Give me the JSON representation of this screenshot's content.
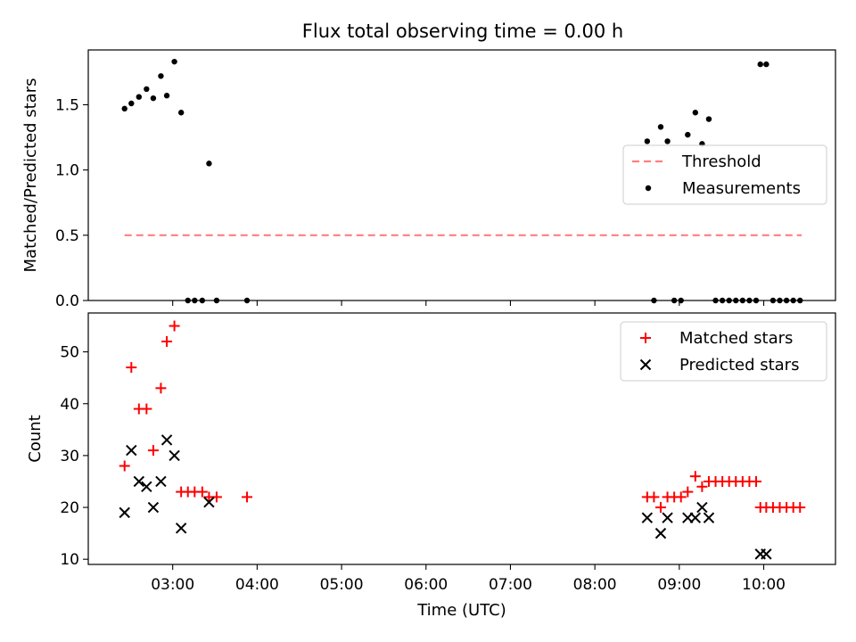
{
  "figure": {
    "title": "Flux total observing time = 0.00 h"
  },
  "chart_data": [
    {
      "type": "scatter",
      "title": "Flux total observing time = 0.00 h",
      "ylabel": "Matched/Predicted stars",
      "xlabel": "",
      "x_axis": "time_utc_hours",
      "xlim": [
        2.0,
        10.85
      ],
      "ylim": [
        0.0,
        1.92
      ],
      "yticks": [
        0.0,
        0.5,
        1.0,
        1.5
      ],
      "ytick_labels": [
        "0.0",
        "0.5",
        "1.0",
        "1.5"
      ],
      "xticks": [
        3,
        4,
        5,
        6,
        7,
        8,
        9,
        10
      ],
      "xtick_labels": [
        "",
        "",
        "",
        "",
        "",
        "",
        "",
        ""
      ],
      "legend": {
        "placement": "center-right",
        "entries": [
          "Threshold",
          "Measurements"
        ]
      },
      "series": [
        {
          "name": "Threshold",
          "kind": "dashed-line",
          "color": "#ff7f7f",
          "x": [
            2.43,
            10.45
          ],
          "y": [
            0.5,
            0.5
          ]
        },
        {
          "name": "Measurements",
          "kind": "dot",
          "color": "#000000",
          "x": [
            2.43,
            2.51,
            2.6,
            2.69,
            2.77,
            2.86,
            2.93,
            3.02,
            3.1,
            3.18,
            3.26,
            3.35,
            3.43,
            3.52,
            3.88,
            8.62,
            8.7,
            8.78,
            8.86,
            8.94,
            9.02,
            9.1,
            9.19,
            9.27,
            9.35,
            9.43,
            9.51,
            9.59,
            9.67,
            9.75,
            9.83,
            9.91,
            9.96,
            10.03,
            10.11,
            10.19,
            10.27,
            10.35,
            10.43
          ],
          "y": [
            1.47,
            1.51,
            1.56,
            1.62,
            1.55,
            1.72,
            1.57,
            1.83,
            1.44,
            0.0,
            0.0,
            0.0,
            1.05,
            0.0,
            0.0,
            1.22,
            0.0,
            1.33,
            1.22,
            0.0,
            0.0,
            1.27,
            1.44,
            1.2,
            1.39,
            0.0,
            0.0,
            0.0,
            0.0,
            0.0,
            0.0,
            0.0,
            1.81,
            1.81,
            0.0,
            0.0,
            0.0,
            0.0,
            0.0
          ]
        }
      ]
    },
    {
      "type": "scatter",
      "title": "",
      "ylabel": "Count",
      "xlabel": "Time (UTC)",
      "x_axis": "time_utc_hours",
      "xlim": [
        2.0,
        10.85
      ],
      "ylim": [
        9,
        57.5
      ],
      "yticks": [
        10,
        20,
        30,
        40,
        50
      ],
      "ytick_labels": [
        "10",
        "20",
        "30",
        "40",
        "50"
      ],
      "xticks": [
        3,
        4,
        5,
        6,
        7,
        8,
        9,
        10
      ],
      "xtick_labels": [
        "03:00",
        "04:00",
        "05:00",
        "06:00",
        "07:00",
        "08:00",
        "09:00",
        "10:00"
      ],
      "legend": {
        "placement": "top-right",
        "entries": [
          "Matched stars",
          "Predicted stars"
        ]
      },
      "series": [
        {
          "name": "Matched stars",
          "marker": "plus",
          "color": "#ff0000",
          "x": [
            2.43,
            2.51,
            2.6,
            2.69,
            2.77,
            2.86,
            2.93,
            3.02,
            3.1,
            3.18,
            3.26,
            3.35,
            3.43,
            3.52,
            3.88,
            8.62,
            8.7,
            8.78,
            8.86,
            8.94,
            9.02,
            9.1,
            9.19,
            9.27,
            9.35,
            9.43,
            9.51,
            9.59,
            9.67,
            9.75,
            9.83,
            9.91,
            9.96,
            10.03,
            10.11,
            10.19,
            10.27,
            10.35,
            10.43
          ],
          "y": [
            28,
            47,
            39,
            39,
            31,
            43,
            52,
            55,
            23,
            23,
            23,
            23,
            22,
            22,
            22,
            22,
            22,
            20,
            22,
            22,
            22,
            23,
            26,
            24,
            25,
            25,
            25,
            25,
            25,
            25,
            25,
            25,
            20,
            20,
            20,
            20,
            20,
            20,
            20
          ]
        },
        {
          "name": "Predicted stars",
          "marker": "x",
          "color": "#000000",
          "x": [
            2.43,
            2.51,
            2.6,
            2.69,
            2.77,
            2.86,
            2.93,
            3.02,
            3.1,
            3.43,
            8.62,
            8.78,
            8.86,
            9.1,
            9.19,
            9.27,
            9.35,
            9.96,
            10.03
          ],
          "y": [
            19,
            31,
            25,
            24,
            20,
            25,
            33,
            30,
            16,
            21,
            18,
            15,
            18,
            18,
            18,
            20,
            18,
            11,
            11
          ]
        }
      ]
    }
  ]
}
